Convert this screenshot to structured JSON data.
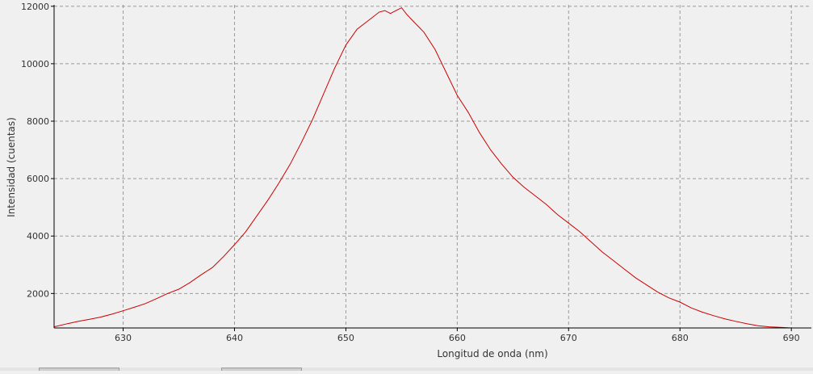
{
  "chart_data": {
    "type": "line",
    "title": "",
    "xlabel": "Longitud de onda (nm)",
    "ylabel": "Intensidad (cuentas)",
    "xlim": [
      623.8,
      691.8
    ],
    "ylim": [
      800,
      12050
    ],
    "xticks": [
      630,
      640,
      650,
      660,
      670,
      680,
      690
    ],
    "yticks": [
      2000,
      4000,
      6000,
      8000,
      10000,
      12000
    ],
    "grid": true,
    "series": [
      {
        "color": "#cc0000",
        "x": [
          623.8,
          625,
          626,
          627,
          628,
          629,
          630,
          631,
          632,
          633,
          634,
          635,
          636,
          637,
          638,
          639,
          640,
          641,
          642,
          643,
          644,
          645,
          646,
          647,
          648,
          649,
          650,
          651,
          652,
          653,
          653.5,
          654,
          654.5,
          655,
          655.5,
          656,
          657,
          658,
          659,
          660,
          661,
          662,
          663,
          664,
          665,
          666,
          667,
          668,
          669,
          670,
          671,
          672,
          673,
          674,
          675,
          676,
          677,
          678,
          679,
          680,
          681,
          682,
          683,
          684,
          685,
          686,
          687,
          688,
          689,
          690
        ],
        "y": [
          840,
          950,
          1030,
          1100,
          1180,
          1280,
          1400,
          1520,
          1650,
          1820,
          2000,
          2150,
          2380,
          2650,
          2900,
          3280,
          3700,
          4150,
          4700,
          5250,
          5850,
          6500,
          7250,
          8050,
          8950,
          9850,
          10650,
          11200,
          11500,
          11800,
          11850,
          11750,
          11850,
          11950,
          11700,
          11500,
          11100,
          10500,
          9700,
          8900,
          8300,
          7600,
          7000,
          6500,
          6050,
          5700,
          5400,
          5100,
          4750,
          4450,
          4150,
          3800,
          3450,
          3150,
          2850,
          2550,
          2300,
          2050,
          1850,
          1700,
          1500,
          1350,
          1230,
          1120,
          1030,
          950,
          880,
          840,
          820,
          800
        ]
      }
    ]
  }
}
